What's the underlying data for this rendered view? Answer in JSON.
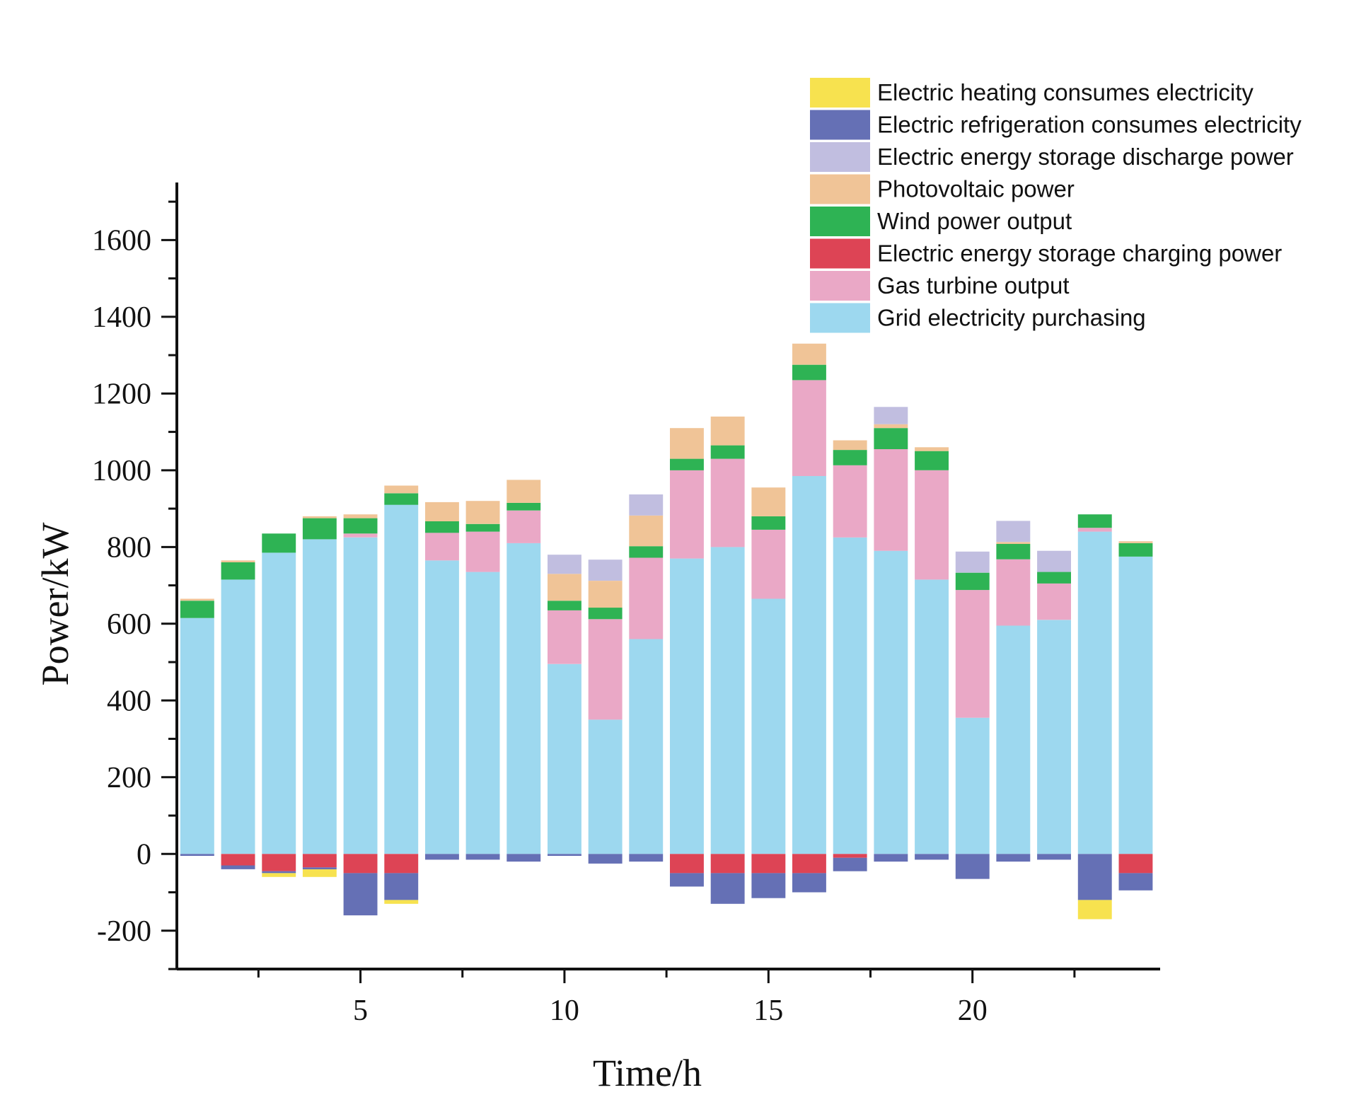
{
  "chart_data": {
    "type": "bar",
    "stacked": true,
    "title": "",
    "xlabel": "Time/h",
    "ylabel": "Power/kW",
    "xlim": [
      0.5,
      24.6
    ],
    "ylim": [
      -300,
      1750
    ],
    "xticks": [
      5,
      10,
      15,
      20
    ],
    "yticks": [
      -200,
      0,
      200,
      400,
      600,
      800,
      1000,
      1200,
      1400,
      1600
    ],
    "ytick_labels": [
      "-200",
      "0",
      "200",
      "400",
      "600",
      "800",
      "1000",
      "1200",
      "1400",
      "1600"
    ],
    "x": [
      1,
      2,
      3,
      4,
      5,
      6,
      7,
      8,
      9,
      10,
      11,
      12,
      13,
      14,
      15,
      16,
      17,
      18,
      19,
      20,
      21,
      22,
      23,
      24
    ],
    "legend_position": "top-right",
    "series": [
      {
        "name": "Grid electricity purchasing",
        "key": "grid",
        "color": "#9dd8ef",
        "group": "positive",
        "values": [
          615,
          715,
          785,
          820,
          825,
          910,
          765,
          735,
          810,
          495,
          350,
          560,
          770,
          800,
          665,
          985,
          825,
          790,
          715,
          355,
          595,
          610,
          840,
          775
        ]
      },
      {
        "name": "Gas turbine output",
        "key": "gt",
        "color": "#eaa8c6",
        "group": "positive",
        "values": [
          0,
          0,
          0,
          0,
          10,
          0,
          72,
          105,
          85,
          140,
          262,
          212,
          230,
          230,
          180,
          250,
          188,
          265,
          285,
          333,
          173,
          95,
          10,
          0
        ]
      },
      {
        "name": "Electric energy storage charging power",
        "key": "esc",
        "color": "#dd4455",
        "group": "negative",
        "values": [
          0,
          -30,
          -45,
          -35,
          -50,
          -50,
          0,
          0,
          0,
          0,
          0,
          0,
          -50,
          -50,
          -50,
          -50,
          -10,
          0,
          0,
          0,
          0,
          0,
          0,
          -50
        ]
      },
      {
        "name": "Wind power output",
        "key": "wind",
        "color": "#2eb354",
        "group": "positive",
        "values": [
          45,
          45,
          50,
          55,
          40,
          30,
          30,
          20,
          20,
          25,
          30,
          30,
          30,
          35,
          35,
          40,
          40,
          55,
          50,
          45,
          40,
          30,
          35,
          35
        ]
      },
      {
        "name": "Photovoltaic power",
        "key": "pv",
        "color": "#f0c497",
        "group": "positive",
        "values": [
          5,
          5,
          0,
          5,
          10,
          20,
          50,
          60,
          60,
          70,
          70,
          80,
          80,
          75,
          75,
          55,
          25,
          10,
          10,
          0,
          5,
          0,
          0,
          5
        ]
      },
      {
        "name": "Electric energy storage discharge power",
        "key": "esd",
        "color": "#c1bee0",
        "group": "positive",
        "values": [
          0,
          0,
          0,
          0,
          0,
          0,
          0,
          0,
          0,
          50,
          55,
          55,
          0,
          0,
          0,
          0,
          0,
          45,
          0,
          55,
          55,
          55,
          0,
          0
        ]
      },
      {
        "name": "Electric refrigeration consumes electricity",
        "key": "ref",
        "color": "#6570b5",
        "group": "negative",
        "values": [
          -5,
          -10,
          -5,
          -5,
          -110,
          -70,
          -15,
          -15,
          -20,
          -5,
          -25,
          -20,
          -35,
          -80,
          -65,
          -50,
          -35,
          -20,
          -15,
          -65,
          -20,
          -15,
          -120,
          -45
        ]
      },
      {
        "name": "Electric heating consumes electricity",
        "key": "heat",
        "color": "#f7e24f",
        "group": "negative",
        "values": [
          0,
          0,
          -10,
          -20,
          0,
          -10,
          0,
          0,
          0,
          0,
          0,
          0,
          0,
          0,
          0,
          0,
          0,
          0,
          0,
          0,
          0,
          0,
          -50,
          0
        ]
      }
    ],
    "legend_order": [
      "heat",
      "ref",
      "esd",
      "pv",
      "wind",
      "esc",
      "gt",
      "grid"
    ]
  }
}
